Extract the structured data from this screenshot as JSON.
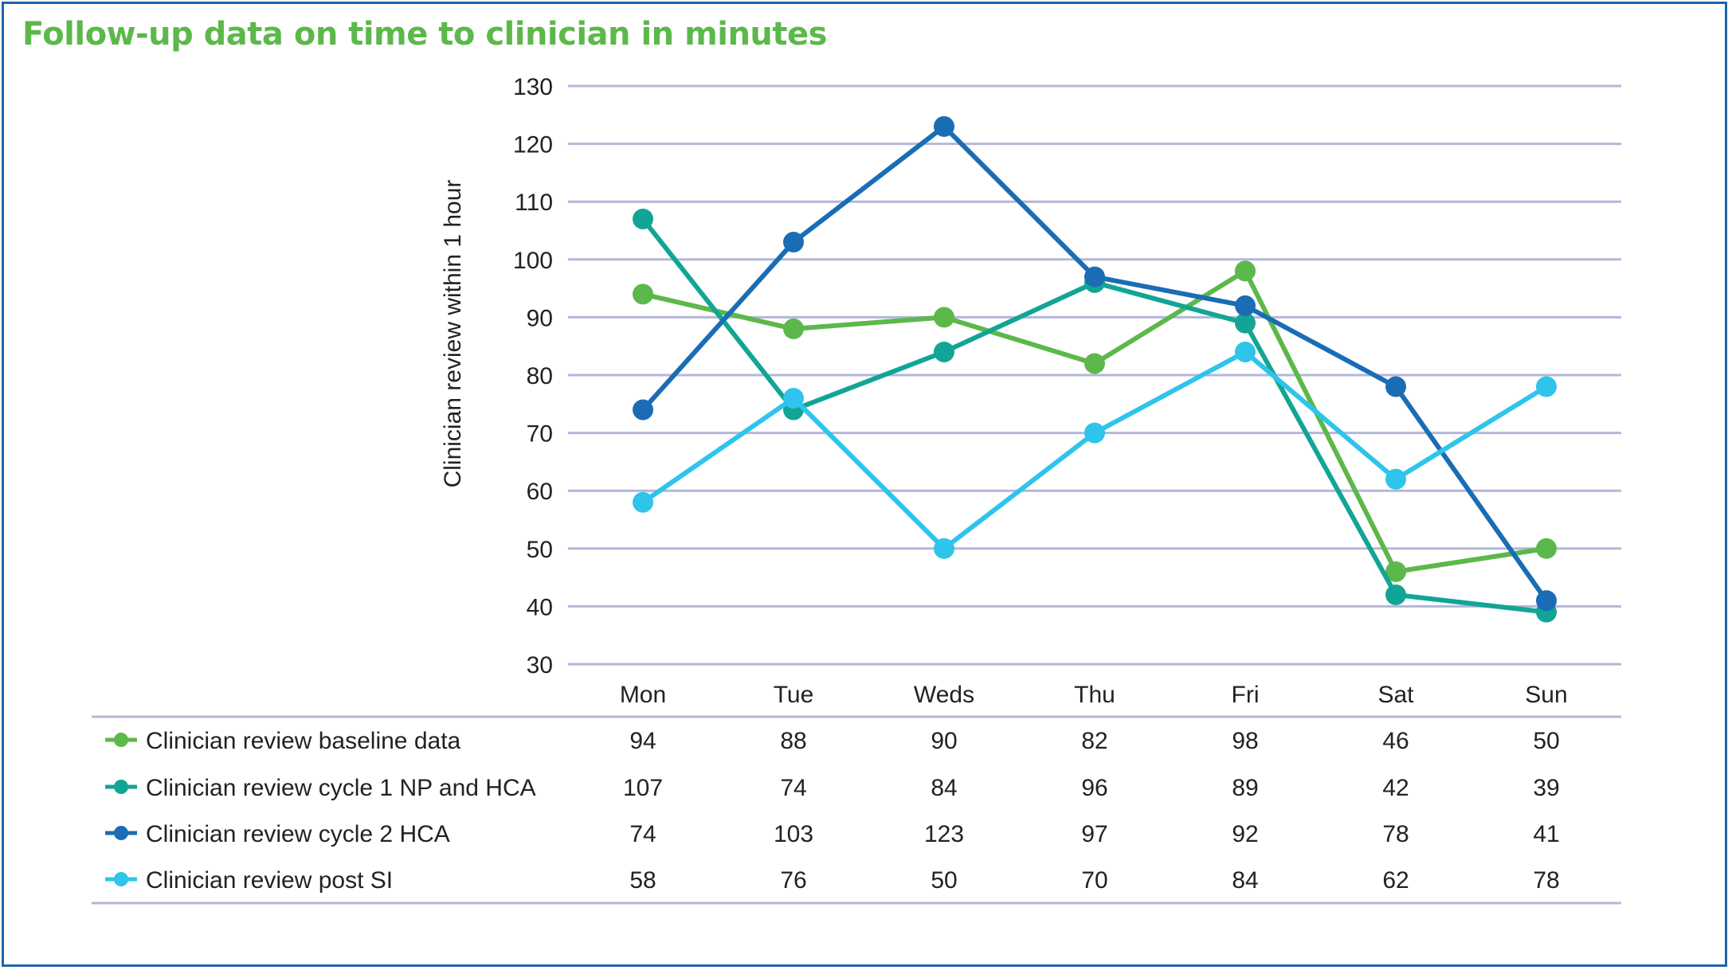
{
  "title": "Follow-up data on time to clinician in minutes",
  "chart_data": {
    "type": "line",
    "title": "Follow-up data on time to clinician in minutes",
    "xlabel": "",
    "ylabel": "Clinician review within 1 hour",
    "ylim": [
      30,
      130
    ],
    "yticks": [
      30,
      40,
      50,
      60,
      70,
      80,
      90,
      100,
      110,
      120,
      130
    ],
    "grid": true,
    "legend_placement": "data table below chart",
    "categories": [
      "Mon",
      "Tue",
      "Weds",
      "Thu",
      "Fri",
      "Sat",
      "Sun"
    ],
    "series": [
      {
        "name": "Clinician review baseline data",
        "color": "#5cb84a",
        "values": [
          94,
          88,
          90,
          82,
          98,
          46,
          50
        ]
      },
      {
        "name": "Clinician review cycle 1 NP and HCA",
        "color": "#12a596",
        "values": [
          107,
          74,
          84,
          96,
          89,
          42,
          39
        ]
      },
      {
        "name": "Clinician review cycle 2 HCA",
        "color": "#1a6db5",
        "values": [
          74,
          103,
          123,
          97,
          92,
          78,
          41
        ]
      },
      {
        "name": "Clinician review post SI",
        "color": "#2ec4ec",
        "values": [
          58,
          76,
          50,
          70,
          84,
          62,
          78
        ]
      }
    ]
  }
}
